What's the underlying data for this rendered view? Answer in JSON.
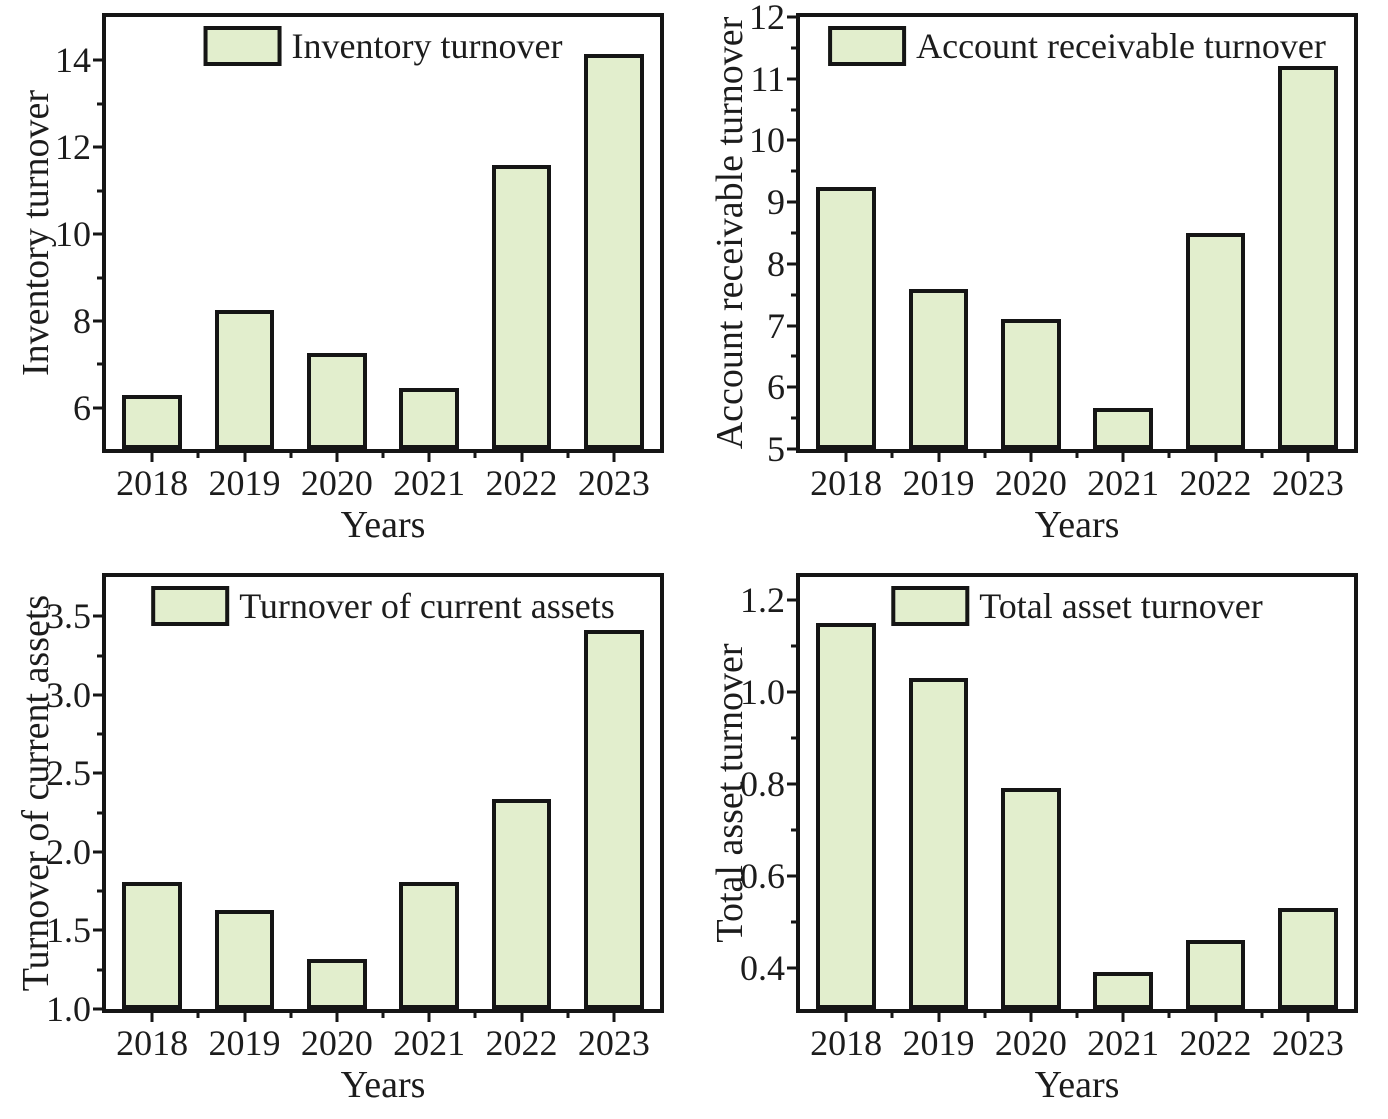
{
  "figure": {
    "background": "#ffffff",
    "layout": "2x2-grid",
    "shared_xlabel": "Years"
  },
  "colors": {
    "bar_fill": "#e2eecd",
    "outline": "#151515",
    "text": "#1c1c1c"
  },
  "chart_data": [
    {
      "type": "bar",
      "series_name": "Inventory turnover",
      "ylabel": "Inventory turnover",
      "xlabel": "Years",
      "categories": [
        "2018",
        "2019",
        "2020",
        "2021",
        "2022",
        "2023"
      ],
      "values": [
        6.3,
        8.25,
        7.25,
        6.45,
        11.6,
        14.15
      ],
      "ylim": [
        5.05,
        15.0
      ],
      "yticks": {
        "values": [
          6,
          8,
          10,
          12,
          14
        ],
        "labels": [
          "6",
          "8",
          "10",
          "12",
          "14"
        ]
      },
      "yticks_minor": [
        7,
        9,
        11,
        13
      ],
      "legend_position": "top-center",
      "grid": false
    },
    {
      "type": "bar",
      "series_name": "Account receivable turnover",
      "ylabel": "Account receivable turnover",
      "xlabel": "Years",
      "categories": [
        "2018",
        "2019",
        "2020",
        "2021",
        "2022",
        "2023"
      ],
      "values": [
        9.25,
        7.6,
        7.1,
        5.67,
        8.5,
        11.2
      ],
      "ylim": [
        5,
        12
      ],
      "yticks": {
        "values": [
          5,
          6,
          7,
          8,
          9,
          10,
          11,
          12
        ],
        "labels": [
          "5",
          "6",
          "7",
          "8",
          "9",
          "10",
          "11",
          "12"
        ]
      },
      "yticks_minor": [
        5.5,
        6.5,
        7.5,
        8.5,
        9.5,
        10.5,
        11.5
      ],
      "legend_position": "top-center",
      "grid": false
    },
    {
      "type": "bar",
      "series_name": "Turnover of current assets",
      "ylabel": "Turnover of current assets",
      "xlabel": "Years",
      "categories": [
        "2018",
        "2019",
        "2020",
        "2021",
        "2022",
        "2023"
      ],
      "values": [
        1.81,
        1.63,
        1.32,
        1.81,
        2.34,
        3.41
      ],
      "ylim": [
        1.0,
        3.75
      ],
      "yticks": {
        "values": [
          1.0,
          1.5,
          2.0,
          2.5,
          3.0,
          3.5
        ],
        "labels": [
          "1.0",
          "1.5",
          "2.0",
          "2.5",
          "3.0",
          "3.5"
        ]
      },
      "yticks_minor": [
        1.25,
        1.75,
        2.25,
        2.75,
        3.25
      ],
      "legend_position": "top-center",
      "grid": false
    },
    {
      "type": "bar",
      "series_name": "Total asset turnover",
      "ylabel": "Total asset turnover",
      "xlabel": "Years",
      "categories": [
        "2018",
        "2019",
        "2020",
        "2021",
        "2022",
        "2023"
      ],
      "values": [
        1.15,
        1.03,
        0.79,
        0.39,
        0.46,
        0.53
      ],
      "ylim": [
        0.31,
        1.25
      ],
      "yticks": {
        "values": [
          0.4,
          0.6,
          0.8,
          1.0,
          1.2
        ],
        "labels": [
          "0.4",
          "0.6",
          "0.8",
          "1.0",
          "1.2"
        ]
      },
      "yticks_minor": [
        0.5,
        0.7,
        0.9,
        1.1
      ],
      "legend_position": "top-center",
      "grid": false
    }
  ]
}
